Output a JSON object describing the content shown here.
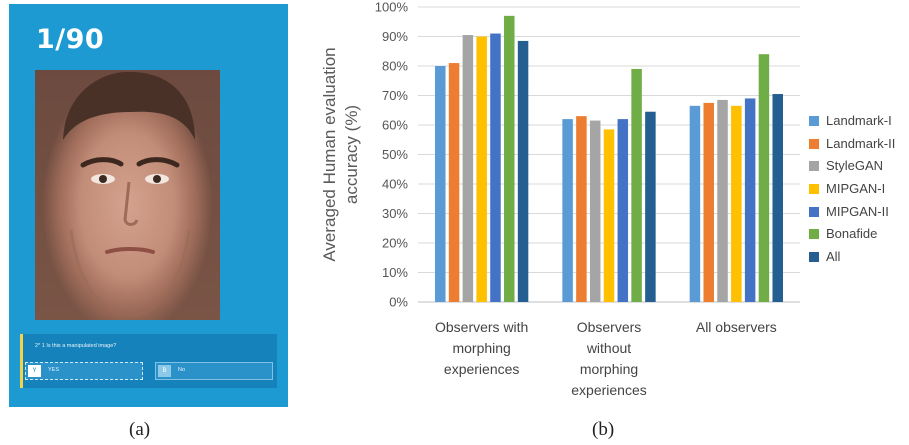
{
  "panel_a": {
    "counter": "1/90",
    "question": "2* 1 Is this a manipulated image?",
    "answers": [
      {
        "key": "Y",
        "label": "YES"
      },
      {
        "key": "B",
        "label": "No"
      }
    ],
    "caption": "(a)",
    "colors": {
      "background": "#1e9ad2",
      "question_bg": "#1582bb",
      "accent": "#f3d34a"
    }
  },
  "panel_b": {
    "caption": "(b)"
  },
  "chart_data": {
    "type": "bar",
    "title": "",
    "xlabel": "",
    "ylabel": "Averaged Human evaluation accuracy (%)",
    "ylabel_lines": [
      "Averaged Human evaluation",
      "accuracy (%)"
    ],
    "ylim": [
      0,
      100
    ],
    "yticks": [
      "0%",
      "10%",
      "20%",
      "30%",
      "40%",
      "50%",
      "60%",
      "70%",
      "80%",
      "90%",
      "100%"
    ],
    "grid": true,
    "legend_position": "right",
    "categories": [
      "Observers with morphing experiences",
      "Observers without morphing experiences",
      "All observers"
    ],
    "category_lines": [
      [
        "Observers with",
        "morphing",
        "experiences"
      ],
      [
        "Observers",
        "without",
        "morphing",
        "experiences"
      ],
      [
        "All observers"
      ]
    ],
    "series": [
      {
        "name": "Landmark-I",
        "color": "#5b9bd5",
        "values": [
          80,
          62,
          66.5
        ]
      },
      {
        "name": "Landmark-II",
        "color": "#ed7d31",
        "values": [
          81,
          63,
          67.5
        ]
      },
      {
        "name": "StyleGAN",
        "color": "#a5a5a5",
        "values": [
          90.5,
          61.5,
          68.5
        ]
      },
      {
        "name": "MIPGAN-I",
        "color": "#ffc000",
        "values": [
          90,
          58.5,
          66.5
        ]
      },
      {
        "name": "MIPGAN-II",
        "color": "#4472c4",
        "values": [
          91,
          62,
          69
        ]
      },
      {
        "name": "Bonafide",
        "color": "#70ad47",
        "values": [
          97,
          79,
          84
        ]
      },
      {
        "name": "All",
        "color": "#255e91",
        "values": [
          88.5,
          64.5,
          70.5
        ]
      }
    ]
  }
}
